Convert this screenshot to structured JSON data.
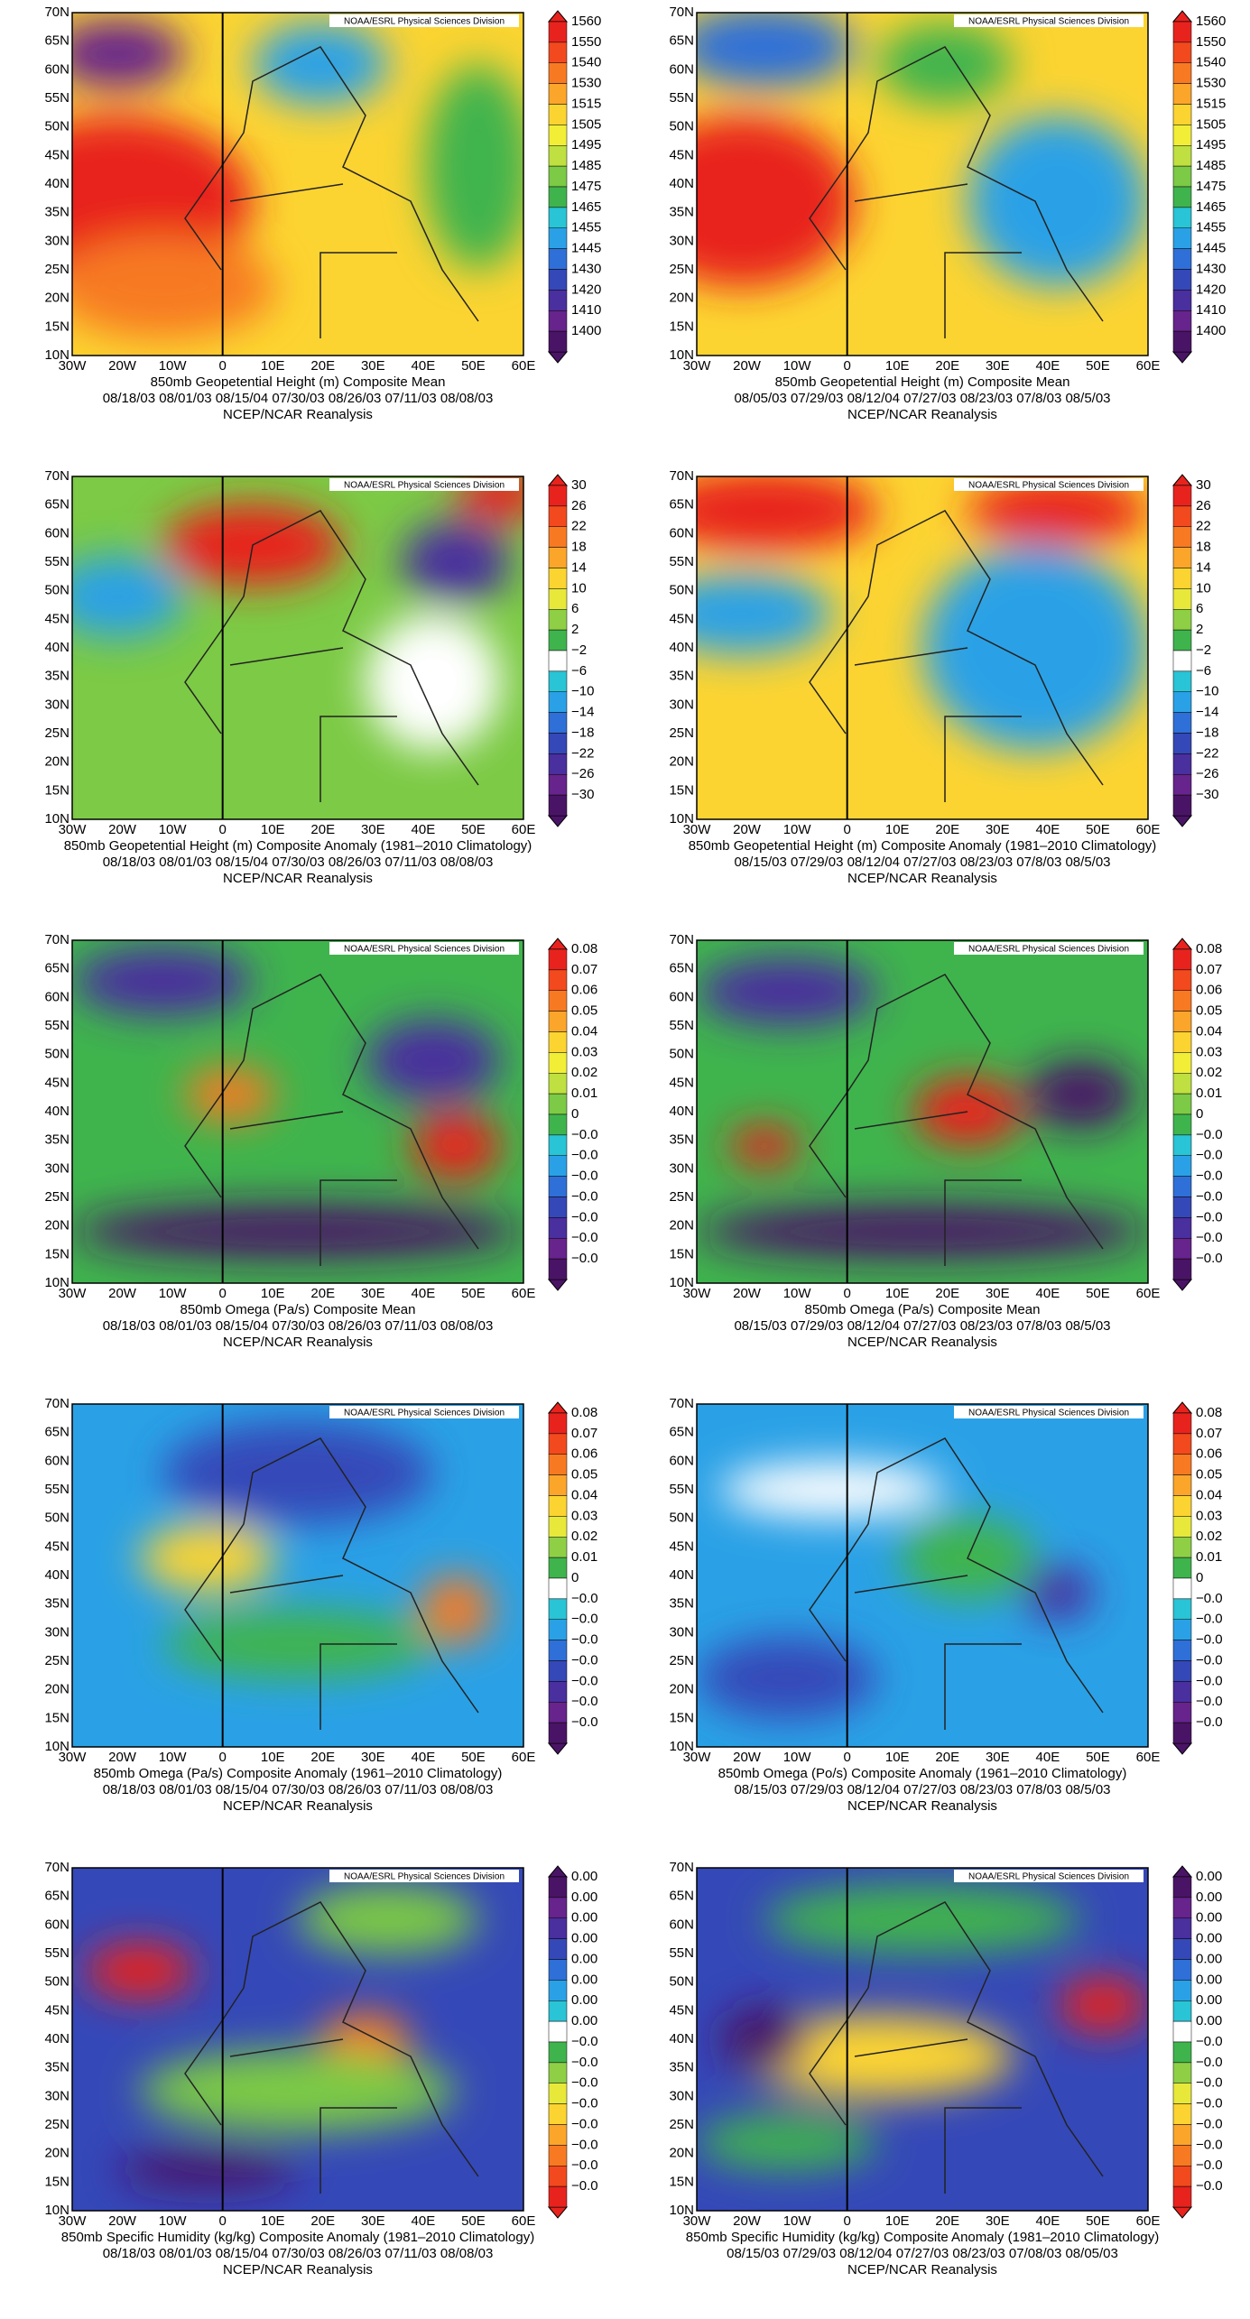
{
  "watermark": "NOAA/ESRL Physical Sciences Division",
  "source": "NCEP/NCAR Reanalysis",
  "lat_labels": [
    "70N",
    "65N",
    "60N",
    "55N",
    "50N",
    "45N",
    "40N",
    "35N",
    "30N",
    "25N",
    "20N",
    "15N",
    "10N"
  ],
  "lon_labels": [
    "30W",
    "20W",
    "10W",
    "0",
    "10E",
    "20E",
    "30E",
    "40E",
    "50E",
    "60E"
  ],
  "panels": [
    {
      "title": "850mb Geopetential Height (m) Composite Mean",
      "dates": "08/18/03  08/01/03  08/15/04  07/30/03  08/26/03  07/11/03  08/08/03",
      "colorbar_labels": [
        "1560",
        "1550",
        "1540",
        "1530",
        "1515",
        "1505",
        "1495",
        "1485",
        "1475",
        "1465",
        "1455",
        "1445",
        "1430",
        "1420",
        "1410",
        "1400"
      ]
    },
    {
      "title": "850mb Geopetential Height (m) Composite Mean",
      "dates": "08/05/03  07/29/03  08/12/04  07/27/03  08/23/03  07/8/03  08/5/03",
      "colorbar_labels": [
        "1560",
        "1550",
        "1540",
        "1530",
        "1515",
        "1505",
        "1495",
        "1485",
        "1475",
        "1465",
        "1455",
        "1445",
        "1430",
        "1420",
        "1410",
        "1400"
      ]
    },
    {
      "title": "850mb Geopetential Height (m) Composite Anomaly (1981–2010 Climatology)",
      "dates": "08/18/03  08/01/03  08/15/04  07/30/03  08/26/03  07/11/03  08/08/03",
      "colorbar_labels": [
        "30",
        "26",
        "22",
        "18",
        "14",
        "10",
        "6",
        "2",
        "−2",
        "−6",
        "−10",
        "−14",
        "−18",
        "−22",
        "−26",
        "−30"
      ]
    },
    {
      "title": "850mb Geopetential Height (m) Composite Anomaly (1981–2010 Climatology)",
      "dates": "08/15/03  07/29/03  08/12/04  07/27/03  08/23/03  07/8/03  08/5/03",
      "colorbar_labels": [
        "30",
        "26",
        "22",
        "18",
        "14",
        "10",
        "6",
        "2",
        "−2",
        "−6",
        "−10",
        "−14",
        "−18",
        "−22",
        "−26",
        "−30"
      ]
    },
    {
      "title": "850mb Omega (Pa/s) Composite Mean",
      "dates": "08/18/03  08/01/03  08/15/04  07/30/03  08/26/03  07/11/03  08/08/03",
      "colorbar_labels": [
        "0.08",
        "0.07",
        "0.06",
        "0.05",
        "0.04",
        "0.03",
        "0.02",
        "0.01",
        "0",
        "−0.0",
        "−0.0",
        "−0.0",
        "−0.0",
        "−0.0",
        "−0.0",
        "−0.0"
      ]
    },
    {
      "title": "850mb Omega (Pa/s) Composite Mean",
      "dates": "08/15/03  07/29/03  08/12/04  07/27/03  08/23/03  07/8/03  08/5/03",
      "colorbar_labels": [
        "0.08",
        "0.07",
        "0.06",
        "0.05",
        "0.04",
        "0.03",
        "0.02",
        "0.01",
        "0",
        "−0.0",
        "−0.0",
        "−0.0",
        "−0.0",
        "−0.0",
        "−0.0",
        "−0.0"
      ]
    },
    {
      "title": "850mb Omega (Pa/s) Composite Anomaly (1961–2010 Climatology)",
      "dates": "08/18/03  08/01/03  08/15/04  07/30/03  08/26/03  07/11/03  08/08/03",
      "colorbar_labels": [
        "0.08",
        "0.07",
        "0.06",
        "0.05",
        "0.04",
        "0.03",
        "0.02",
        "0.01",
        "0",
        "−0.0",
        "−0.0",
        "−0.0",
        "−0.0",
        "−0.0",
        "−0.0",
        "−0.0"
      ]
    },
    {
      "title": "850mb Omega (Po/s) Composite Anomaly (1961–2010 Climatology)",
      "dates": "08/15/03  07/29/03  08/12/04  07/27/03  08/23/03  07/8/03  08/5/03",
      "colorbar_labels": [
        "0.08",
        "0.07",
        "0.06",
        "0.05",
        "0.04",
        "0.03",
        "0.02",
        "0.01",
        "0",
        "−0.0",
        "−0.0",
        "−0.0",
        "−0.0",
        "−0.0",
        "−0.0",
        "−0.0"
      ]
    },
    {
      "title": "850mb Specific Humidity (kg/kg) Composite Anomaly (1981–2010 Climatology)",
      "dates": "08/18/03  08/01/03  08/15/04  07/30/03  08/26/03  07/11/03  08/08/03",
      "colorbar_labels": [
        "0.00",
        "0.00",
        "0.00",
        "0.00",
        "0.00",
        "0.00",
        "0.00",
        "0.00",
        "−0.0",
        "−0.0",
        "−0.0",
        "−0.0",
        "−0.0",
        "−0.0",
        "−0.0",
        "−0.0"
      ]
    },
    {
      "title": "850mb Specific Humidity (kg/kg) Composite Anomaly (1981–2010 Climatology)",
      "dates": "08/15/03  07/29/03  08/12/04  07/27/03  08/23/03  07/08/03  08/05/03",
      "colorbar_labels": [
        "0.00",
        "0.00",
        "0.00",
        "0.00",
        "0.00",
        "0.00",
        "0.00",
        "0.00",
        "−0.0",
        "−0.0",
        "−0.0",
        "−0.0",
        "−0.0",
        "−0.0",
        "−0.0",
        "−0.0"
      ]
    }
  ]
}
